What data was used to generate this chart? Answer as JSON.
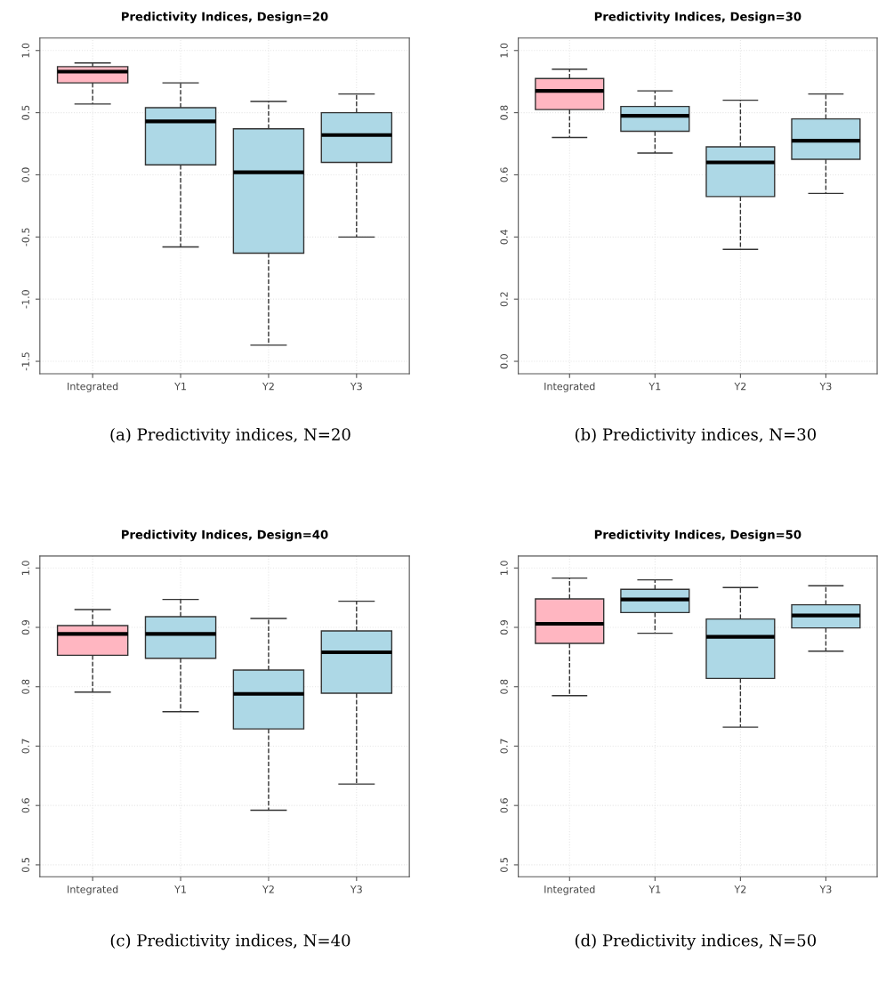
{
  "chart_data": [
    {
      "type": "box",
      "title": "Predictivity Indices, Design=20",
      "categories": [
        "Integrated",
        "Y1",
        "Y2",
        "Y3"
      ],
      "colors": [
        "#ffb6c1",
        "#add8e6",
        "#add8e6",
        "#add8e6"
      ],
      "grid": true,
      "line_style": "dashed",
      "ylim": [
        -1.6,
        1.1
      ],
      "yticks": [
        {
          "value": -1.5,
          "label": "-1.5"
        },
        {
          "value": -1.0,
          "label": "-1.0"
        },
        {
          "value": -0.5,
          "label": "-0.5"
        },
        {
          "value": 0.0,
          "label": "0.0"
        },
        {
          "value": 0.5,
          "label": "0.5"
        },
        {
          "value": 1.0,
          "label": "1.0"
        }
      ],
      "boxes": [
        {
          "low": 0.57,
          "q1": 0.74,
          "median": 0.83,
          "q3": 0.87,
          "high": 0.9
        },
        {
          "low": -0.58,
          "q1": 0.08,
          "median": 0.43,
          "q3": 0.54,
          "high": 0.74
        },
        {
          "low": -1.37,
          "q1": -0.63,
          "median": 0.02,
          "q3": 0.37,
          "high": 0.59
        },
        {
          "low": -0.5,
          "q1": 0.1,
          "median": 0.32,
          "q3": 0.5,
          "high": 0.65
        }
      ],
      "annotations": [
        "(a) Predictivity indices, N=20"
      ]
    },
    {
      "type": "box",
      "title": "Predictivity Indices, Design=30",
      "categories": [
        "Integrated",
        "Y1",
        "Y2",
        "Y3"
      ],
      "colors": [
        "#ffb6c1",
        "#add8e6",
        "#add8e6",
        "#add8e6"
      ],
      "grid": true,
      "line_style": "dashed",
      "ylim": [
        -0.04,
        1.04
      ],
      "yticks": [
        {
          "value": 0.0,
          "label": "0.0"
        },
        {
          "value": 0.2,
          "label": "0.2"
        },
        {
          "value": 0.4,
          "label": "0.4"
        },
        {
          "value": 0.6,
          "label": "0.6"
        },
        {
          "value": 0.8,
          "label": "0.8"
        },
        {
          "value": 1.0,
          "label": "1.0"
        }
      ],
      "boxes": [
        {
          "low": 0.72,
          "q1": 0.81,
          "median": 0.87,
          "q3": 0.91,
          "high": 0.94
        },
        {
          "low": 0.67,
          "q1": 0.74,
          "median": 0.79,
          "q3": 0.82,
          "high": 0.87
        },
        {
          "low": 0.36,
          "q1": 0.53,
          "median": 0.64,
          "q3": 0.69,
          "high": 0.84
        },
        {
          "low": 0.54,
          "q1": 0.65,
          "median": 0.71,
          "q3": 0.78,
          "high": 0.86
        }
      ],
      "annotations": [
        "(b) Predictivity indices, N=30"
      ]
    },
    {
      "type": "box",
      "title": "Predictivity Indices, Design=40",
      "categories": [
        "Integrated",
        "Y1",
        "Y2",
        "Y3"
      ],
      "colors": [
        "#ffb6c1",
        "#add8e6",
        "#add8e6",
        "#add8e6"
      ],
      "grid": true,
      "line_style": "dashed",
      "ylim": [
        0.48,
        1.02
      ],
      "yticks": [
        {
          "value": 0.5,
          "label": "0.5"
        },
        {
          "value": 0.6,
          "label": "0.6"
        },
        {
          "value": 0.7,
          "label": "0.7"
        },
        {
          "value": 0.8,
          "label": "0.8"
        },
        {
          "value": 0.9,
          "label": "0.9"
        },
        {
          "value": 1.0,
          "label": "1.0"
        }
      ],
      "boxes": [
        {
          "low": 0.791,
          "q1": 0.853,
          "median": 0.889,
          "q3": 0.903,
          "high": 0.93
        },
        {
          "low": 0.758,
          "q1": 0.848,
          "median": 0.889,
          "q3": 0.918,
          "high": 0.947
        },
        {
          "low": 0.592,
          "q1": 0.729,
          "median": 0.788,
          "q3": 0.828,
          "high": 0.915
        },
        {
          "low": 0.636,
          "q1": 0.789,
          "median": 0.858,
          "q3": 0.894,
          "high": 0.944
        }
      ],
      "annotations": [
        "(c) Predictivity indices, N=40"
      ]
    },
    {
      "type": "box",
      "title": "Predictivity Indices, Design=50",
      "categories": [
        "Integrated",
        "Y1",
        "Y2",
        "Y3"
      ],
      "colors": [
        "#ffb6c1",
        "#add8e6",
        "#add8e6",
        "#add8e6"
      ],
      "grid": true,
      "line_style": "dashed",
      "ylim": [
        0.48,
        1.02
      ],
      "yticks": [
        {
          "value": 0.5,
          "label": "0.5"
        },
        {
          "value": 0.6,
          "label": "0.6"
        },
        {
          "value": 0.7,
          "label": "0.7"
        },
        {
          "value": 0.8,
          "label": "0.8"
        },
        {
          "value": 0.9,
          "label": "0.9"
        },
        {
          "value": 1.0,
          "label": "1.0"
        }
      ],
      "boxes": [
        {
          "low": 0.785,
          "q1": 0.873,
          "median": 0.906,
          "q3": 0.948,
          "high": 0.983
        },
        {
          "low": 0.89,
          "q1": 0.925,
          "median": 0.947,
          "q3": 0.964,
          "high": 0.98
        },
        {
          "low": 0.732,
          "q1": 0.814,
          "median": 0.884,
          "q3": 0.914,
          "high": 0.967
        },
        {
          "low": 0.86,
          "q1": 0.899,
          "median": 0.92,
          "q3": 0.938,
          "high": 0.97
        }
      ],
      "annotations": [
        "(d) Predictivity indices, N=50"
      ]
    }
  ]
}
